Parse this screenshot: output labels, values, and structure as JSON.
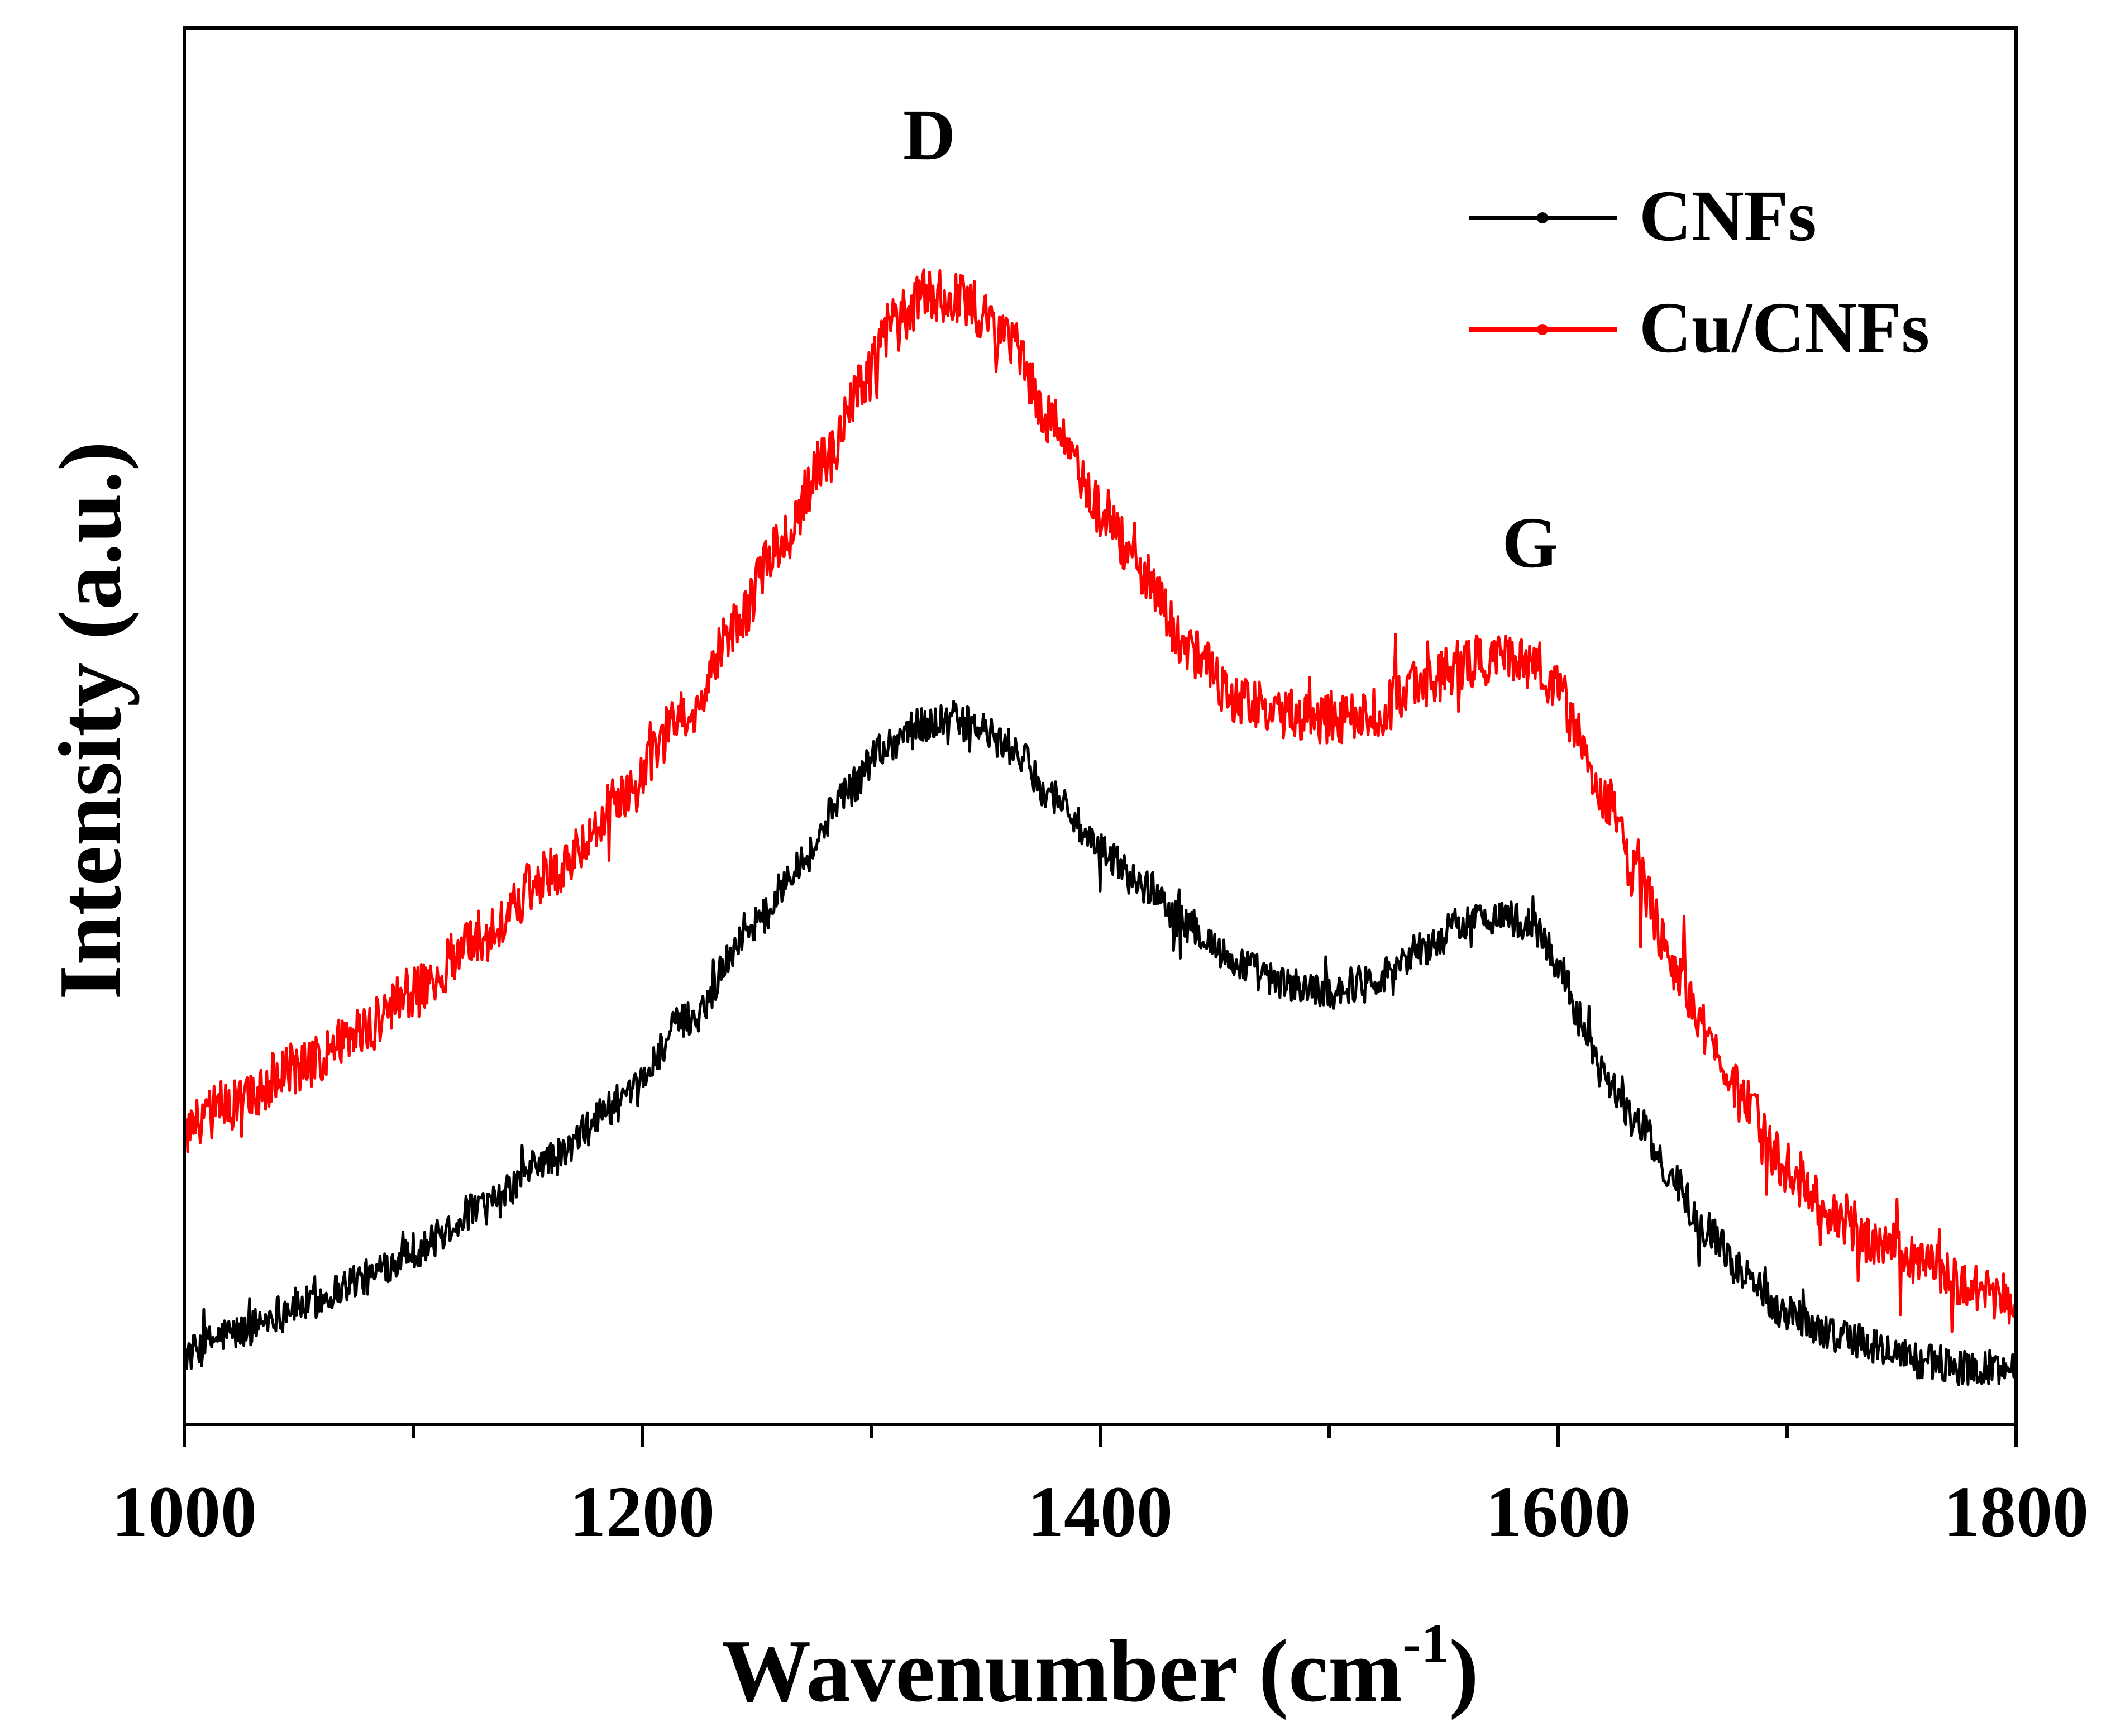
{
  "chart_data": {
    "type": "line",
    "title": "",
    "xlabel": "Wavenumber (cm",
    "xlabel_superscript": "-1",
    "xlabel_close": ")",
    "ylabel": "Intensity (a.u.)",
    "xlim": [
      1000,
      1800
    ],
    "ylim": [
      0,
      100
    ],
    "xticks": [
      1000,
      1200,
      1400,
      1600,
      1800
    ],
    "xtick_labels": [
      "1000",
      "1200",
      "1400",
      "1600",
      "1800"
    ],
    "minor_xticks": [
      1100,
      1300,
      1500,
      1700
    ],
    "yticks_visible": false,
    "legend_position": "top-right",
    "annotations": [
      {
        "text": "D",
        "x": 1330,
        "y": 92
      },
      {
        "text": "G",
        "x": 1582,
        "y": 62.5
      }
    ],
    "series": [
      {
        "name": "CNFs",
        "color": "#000000",
        "anchors_x": [
          1000,
          1020,
          1050,
          1080,
          1100,
          1130,
          1160,
          1190,
          1220,
          1250,
          1270,
          1290,
          1305,
          1320,
          1335,
          1345,
          1360,
          1380,
          1400,
          1420,
          1440,
          1460,
          1480,
          1500,
          1520,
          1540,
          1560,
          1575,
          1590,
          1600,
          1610,
          1620,
          1635,
          1650,
          1665,
          1680,
          1700,
          1720,
          1740,
          1760,
          1780,
          1800
        ],
        "anchors_y": [
          5,
          6.5,
          8.5,
          10.5,
          12.5,
          15.5,
          19,
          23,
          29,
          36,
          40.5,
          45.5,
          48.5,
          50,
          50.5,
          50,
          48.5,
          45,
          41,
          38.5,
          35.5,
          33,
          31.5,
          31,
          32,
          34,
          36,
          36.5,
          35.5,
          33,
          29,
          25,
          21.5,
          17.5,
          14,
          11,
          8,
          6.5,
          5.5,
          4.5,
          4,
          4
        ],
        "noise_amplitude": 1.3
      },
      {
        "name": "Cu/CNFs",
        "color": "#ff0000",
        "anchors_x": [
          1000,
          1020,
          1050,
          1080,
          1100,
          1130,
          1160,
          1190,
          1220,
          1240,
          1260,
          1280,
          1295,
          1310,
          1325,
          1340,
          1360,
          1380,
          1400,
          1420,
          1440,
          1460,
          1480,
          1500,
          1520,
          1540,
          1560,
          1575,
          1590,
          1600,
          1610,
          1620,
          1635,
          1650,
          1665,
          1680,
          1700,
          1720,
          1740,
          1760,
          1780,
          1800
        ],
        "anchors_y": [
          21,
          23,
          25.5,
          28.5,
          31,
          35,
          39.5,
          44.5,
          51,
          57,
          63,
          69,
          74,
          79,
          81,
          80.5,
          77.5,
          71.5,
          65.5,
          60.5,
          55,
          52,
          51,
          50.5,
          51,
          53,
          54.5,
          55,
          54.5,
          52.5,
          49,
          45,
          39,
          33,
          28,
          23.5,
          18.5,
          15,
          13,
          11.5,
          10,
          9
        ],
        "noise_amplitude": 1.9
      }
    ]
  }
}
